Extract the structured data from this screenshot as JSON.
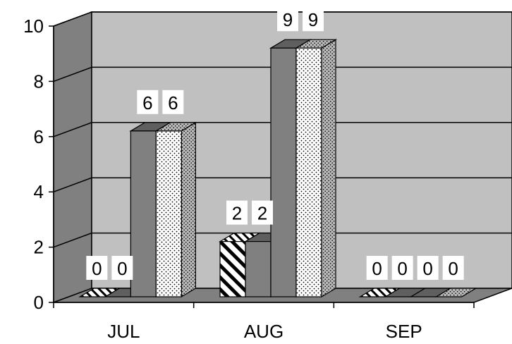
{
  "chart_data": {
    "type": "bar",
    "categories": [
      "JUL",
      "AUG",
      "SEP"
    ],
    "series": [
      {
        "values": [
          0,
          2,
          0
        ]
      },
      {
        "values": [
          0,
          2,
          0
        ]
      },
      {
        "values": [
          6,
          9,
          0
        ]
      },
      {
        "values": [
          6,
          9,
          0
        ]
      }
    ],
    "ylim": [
      0,
      10
    ],
    "yticks": [
      "0",
      "2",
      "4",
      "6",
      "8",
      "10"
    ],
    "grid": true,
    "style": "3d-clustered-column",
    "colors": {
      "back_wall": "#c0c0c0",
      "side_wall": "#808080",
      "floor": "#808080",
      "bar_dark": "#808080",
      "bar_dark_top": "#5f5f5f",
      "bar_dark_side": "#606060"
    }
  }
}
